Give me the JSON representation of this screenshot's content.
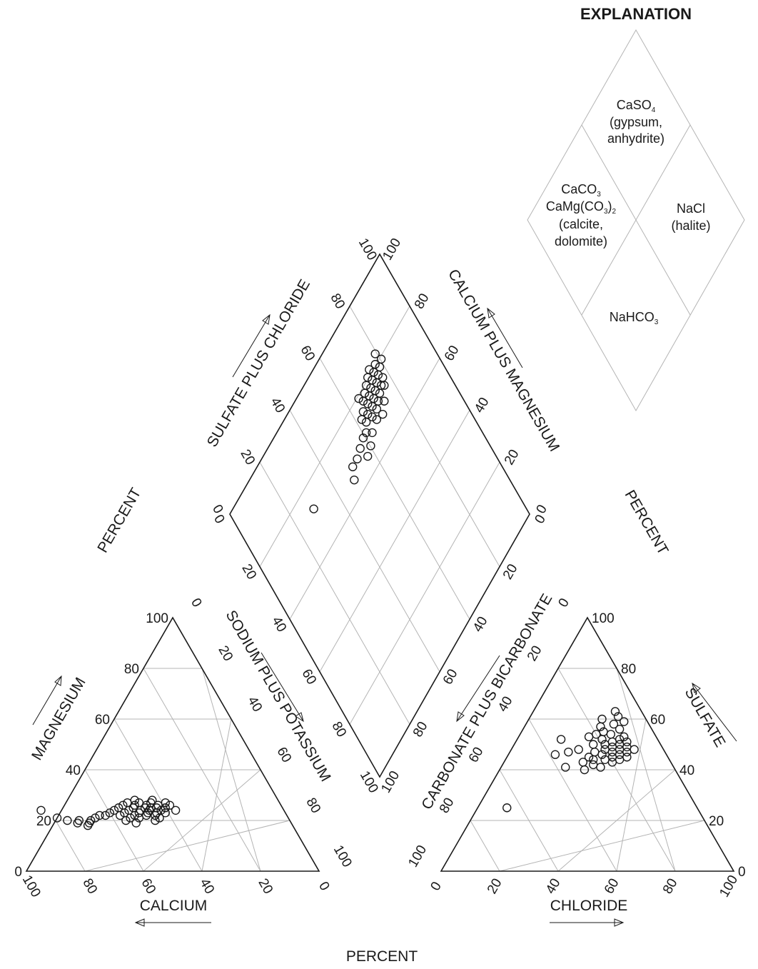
{
  "chart_data": [
    {
      "type": "scatter",
      "name": "cation-triangle",
      "axes": {
        "bottom": "CALCIUM",
        "left": "MAGNESIUM",
        "right": "SODIUM PLUS POTASSIUM"
      },
      "ticks": [
        "0",
        "20",
        "40",
        "60",
        "80",
        "100"
      ],
      "range": [
        0,
        100
      ],
      "grid": true,
      "points": [
        {
          "ca": 83,
          "mg": 24
        },
        {
          "ca": 79,
          "mg": 21
        },
        {
          "ca": 76,
          "mg": 20
        },
        {
          "ca": 73,
          "mg": 19
        },
        {
          "ca": 72,
          "mg": 20
        },
        {
          "ca": 70,
          "mg": 18
        },
        {
          "ca": 69,
          "mg": 19
        },
        {
          "ca": 68,
          "mg": 20
        },
        {
          "ca": 66,
          "mg": 21
        },
        {
          "ca": 64,
          "mg": 22
        },
        {
          "ca": 62,
          "mg": 22
        },
        {
          "ca": 60,
          "mg": 23
        },
        {
          "ca": 58,
          "mg": 24
        },
        {
          "ca": 57,
          "mg": 22
        },
        {
          "ca": 56,
          "mg": 25
        },
        {
          "ca": 55,
          "mg": 23
        },
        {
          "ca": 54,
          "mg": 26
        },
        {
          "ca": 54,
          "mg": 21
        },
        {
          "ca": 53,
          "mg": 24
        },
        {
          "ca": 52,
          "mg": 27
        },
        {
          "ca": 52,
          "mg": 22
        },
        {
          "ca": 51,
          "mg": 25
        },
        {
          "ca": 50,
          "mg": 23
        },
        {
          "ca": 50,
          "mg": 26
        },
        {
          "ca": 49,
          "mg": 24
        },
        {
          "ca": 48,
          "mg": 22
        },
        {
          "ca": 48,
          "mg": 27
        },
        {
          "ca": 47,
          "mg": 25
        },
        {
          "ca": 47,
          "mg": 23
        },
        {
          "ca": 46,
          "mg": 26
        },
        {
          "ca": 46,
          "mg": 24
        },
        {
          "ca": 45,
          "mg": 22
        },
        {
          "ca": 45,
          "mg": 25
        },
        {
          "ca": 44,
          "mg": 27
        },
        {
          "ca": 44,
          "mg": 23
        },
        {
          "ca": 43,
          "mg": 25
        },
        {
          "ca": 42,
          "mg": 24
        },
        {
          "ca": 42,
          "mg": 26
        },
        {
          "ca": 41,
          "mg": 23
        },
        {
          "ca": 40,
          "mg": 25
        },
        {
          "ca": 39,
          "mg": 27
        },
        {
          "ca": 38,
          "mg": 26
        },
        {
          "ca": 37,
          "mg": 24
        },
        {
          "ca": 51,
          "mg": 21
        },
        {
          "ca": 49,
          "mg": 28
        },
        {
          "ca": 46,
          "mg": 20
        },
        {
          "ca": 44,
          "mg": 21
        },
        {
          "ca": 43,
          "mg": 28
        },
        {
          "ca": 56,
          "mg": 20
        },
        {
          "ca": 53,
          "mg": 19
        }
      ]
    },
    {
      "type": "scatter",
      "name": "anion-triangle",
      "axes": {
        "bottom": "CHLORIDE",
        "right": "SULFATE",
        "left": "CARBONATE PLUS BICARBONATE"
      },
      "ticks": [
        "0",
        "20",
        "40",
        "60",
        "80",
        "100"
      ],
      "range": [
        0,
        100
      ],
      "grid": true,
      "points": [
        {
          "cl": 10,
          "so4": 25
        },
        {
          "cl": 15,
          "so4": 52
        },
        {
          "cl": 16,
          "so4": 46
        },
        {
          "cl": 20,
          "so4": 47
        },
        {
          "cl": 22,
          "so4": 41
        },
        {
          "cl": 23,
          "so4": 48
        },
        {
          "cl": 24,
          "so4": 53
        },
        {
          "cl": 25,
          "so4": 60
        },
        {
          "cl": 26,
          "so4": 57
        },
        {
          "cl": 27,
          "so4": 43
        },
        {
          "cl": 27,
          "so4": 50
        },
        {
          "cl": 28,
          "so4": 63
        },
        {
          "cl": 28,
          "so4": 55
        },
        {
          "cl": 29,
          "so4": 47
        },
        {
          "cl": 29,
          "so4": 52
        },
        {
          "cl": 30,
          "so4": 58
        },
        {
          "cl": 30,
          "so4": 44
        },
        {
          "cl": 31,
          "so4": 50
        },
        {
          "cl": 31,
          "so4": 54
        },
        {
          "cl": 32,
          "so4": 48
        },
        {
          "cl": 32,
          "so4": 46
        },
        {
          "cl": 33,
          "so4": 51
        },
        {
          "cl": 33,
          "so4": 56
        },
        {
          "cl": 34,
          "so4": 49
        },
        {
          "cl": 34,
          "so4": 44
        },
        {
          "cl": 35,
          "so4": 52
        },
        {
          "cl": 35,
          "so4": 47
        },
        {
          "cl": 36,
          "so4": 50
        },
        {
          "cl": 36,
          "so4": 45
        },
        {
          "cl": 37,
          "so4": 48
        },
        {
          "cl": 38,
          "so4": 51
        },
        {
          "cl": 38,
          "so4": 46
        },
        {
          "cl": 39,
          "so4": 49
        },
        {
          "cl": 40,
          "so4": 47
        },
        {
          "cl": 41,
          "so4": 45
        },
        {
          "cl": 42,
          "so4": 48
        },
        {
          "cl": 31,
          "so4": 42
        },
        {
          "cl": 29,
          "so4": 40
        },
        {
          "cl": 34,
          "so4": 41
        },
        {
          "cl": 37,
          "so4": 43
        },
        {
          "cl": 26,
          "so4": 54
        },
        {
          "cl": 33,
          "so4": 59
        },
        {
          "cl": 30,
          "so4": 61
        },
        {
          "cl": 36,
          "so4": 53
        },
        {
          "cl": 28,
          "so4": 45
        },
        {
          "cl": 39,
          "so4": 44
        }
      ]
    },
    {
      "type": "scatter",
      "name": "diamond",
      "axes": {
        "upper_left": "SULFATE PLUS CHLORIDE",
        "upper_right": "CALCIUM PLUS MAGNESIUM"
      },
      "ticks": [
        "0",
        "20",
        "40",
        "60",
        "80",
        "100"
      ],
      "range": [
        0,
        100
      ],
      "grid": true,
      "points": [
        {
          "so4cl": 29,
          "camg": 73
        },
        {
          "so4cl": 48,
          "camg": 65
        },
        {
          "so4cl": 50,
          "camg": 68
        },
        {
          "so4cl": 53,
          "camg": 68
        },
        {
          "so4cl": 57,
          "camg": 65
        },
        {
          "so4cl": 56,
          "camg": 69
        },
        {
          "so4cl": 59,
          "camg": 70
        },
        {
          "so4cl": 62,
          "camg": 74
        },
        {
          "so4cl": 63,
          "camg": 72
        },
        {
          "so4cl": 64,
          "camg": 75
        },
        {
          "so4cl": 65,
          "camg": 73
        },
        {
          "so4cl": 66,
          "camg": 77
        },
        {
          "so4cl": 66,
          "camg": 71
        },
        {
          "so4cl": 67,
          "camg": 75
        },
        {
          "so4cl": 68,
          "camg": 78
        },
        {
          "so4cl": 68,
          "camg": 73
        },
        {
          "so4cl": 69,
          "camg": 76
        },
        {
          "so4cl": 69,
          "camg": 71
        },
        {
          "so4cl": 70,
          "camg": 79
        },
        {
          "so4cl": 70,
          "camg": 74
        },
        {
          "so4cl": 71,
          "camg": 77
        },
        {
          "so4cl": 71,
          "camg": 72
        },
        {
          "so4cl": 72,
          "camg": 80
        },
        {
          "so4cl": 72,
          "camg": 75
        },
        {
          "so4cl": 73,
          "camg": 78
        },
        {
          "so4cl": 73,
          "camg": 73
        },
        {
          "so4cl": 74,
          "camg": 76
        },
        {
          "so4cl": 74,
          "camg": 81
        },
        {
          "so4cl": 75,
          "camg": 79
        },
        {
          "so4cl": 75,
          "camg": 74
        },
        {
          "so4cl": 76,
          "camg": 77
        },
        {
          "so4cl": 77,
          "camg": 80
        },
        {
          "so4cl": 77,
          "camg": 75
        },
        {
          "so4cl": 78,
          "camg": 78
        },
        {
          "so4cl": 79,
          "camg": 82
        },
        {
          "so4cl": 80,
          "camg": 79
        },
        {
          "so4cl": 65,
          "camg": 79
        },
        {
          "so4cl": 63,
          "camg": 68
        },
        {
          "so4cl": 61,
          "camg": 70
        },
        {
          "so4cl": 60,
          "camg": 66
        },
        {
          "so4cl": 67,
          "camg": 69
        },
        {
          "so4cl": 70,
          "camg": 68
        },
        {
          "so4cl": 73,
          "camg": 70
        },
        {
          "so4cl": 76,
          "camg": 73
        }
      ]
    }
  ],
  "labels": {
    "percent_bottom": "PERCENT",
    "percent_left": "PERCENT",
    "percent_right": "PERCENT"
  },
  "explanation": {
    "title": "EXPLANATION",
    "top": [
      "CaSO",
      "(gypsum,",
      "anhydrite)"
    ],
    "left": [
      "CaCO",
      "CaMg(CO",
      ")",
      "(calcite,",
      "dolomite)"
    ],
    "right": [
      "NaCl",
      "(halite)"
    ],
    "bottom": [
      "NaHCO"
    ],
    "subscripts": [
      "4",
      "3",
      "3",
      "2",
      "3"
    ]
  }
}
